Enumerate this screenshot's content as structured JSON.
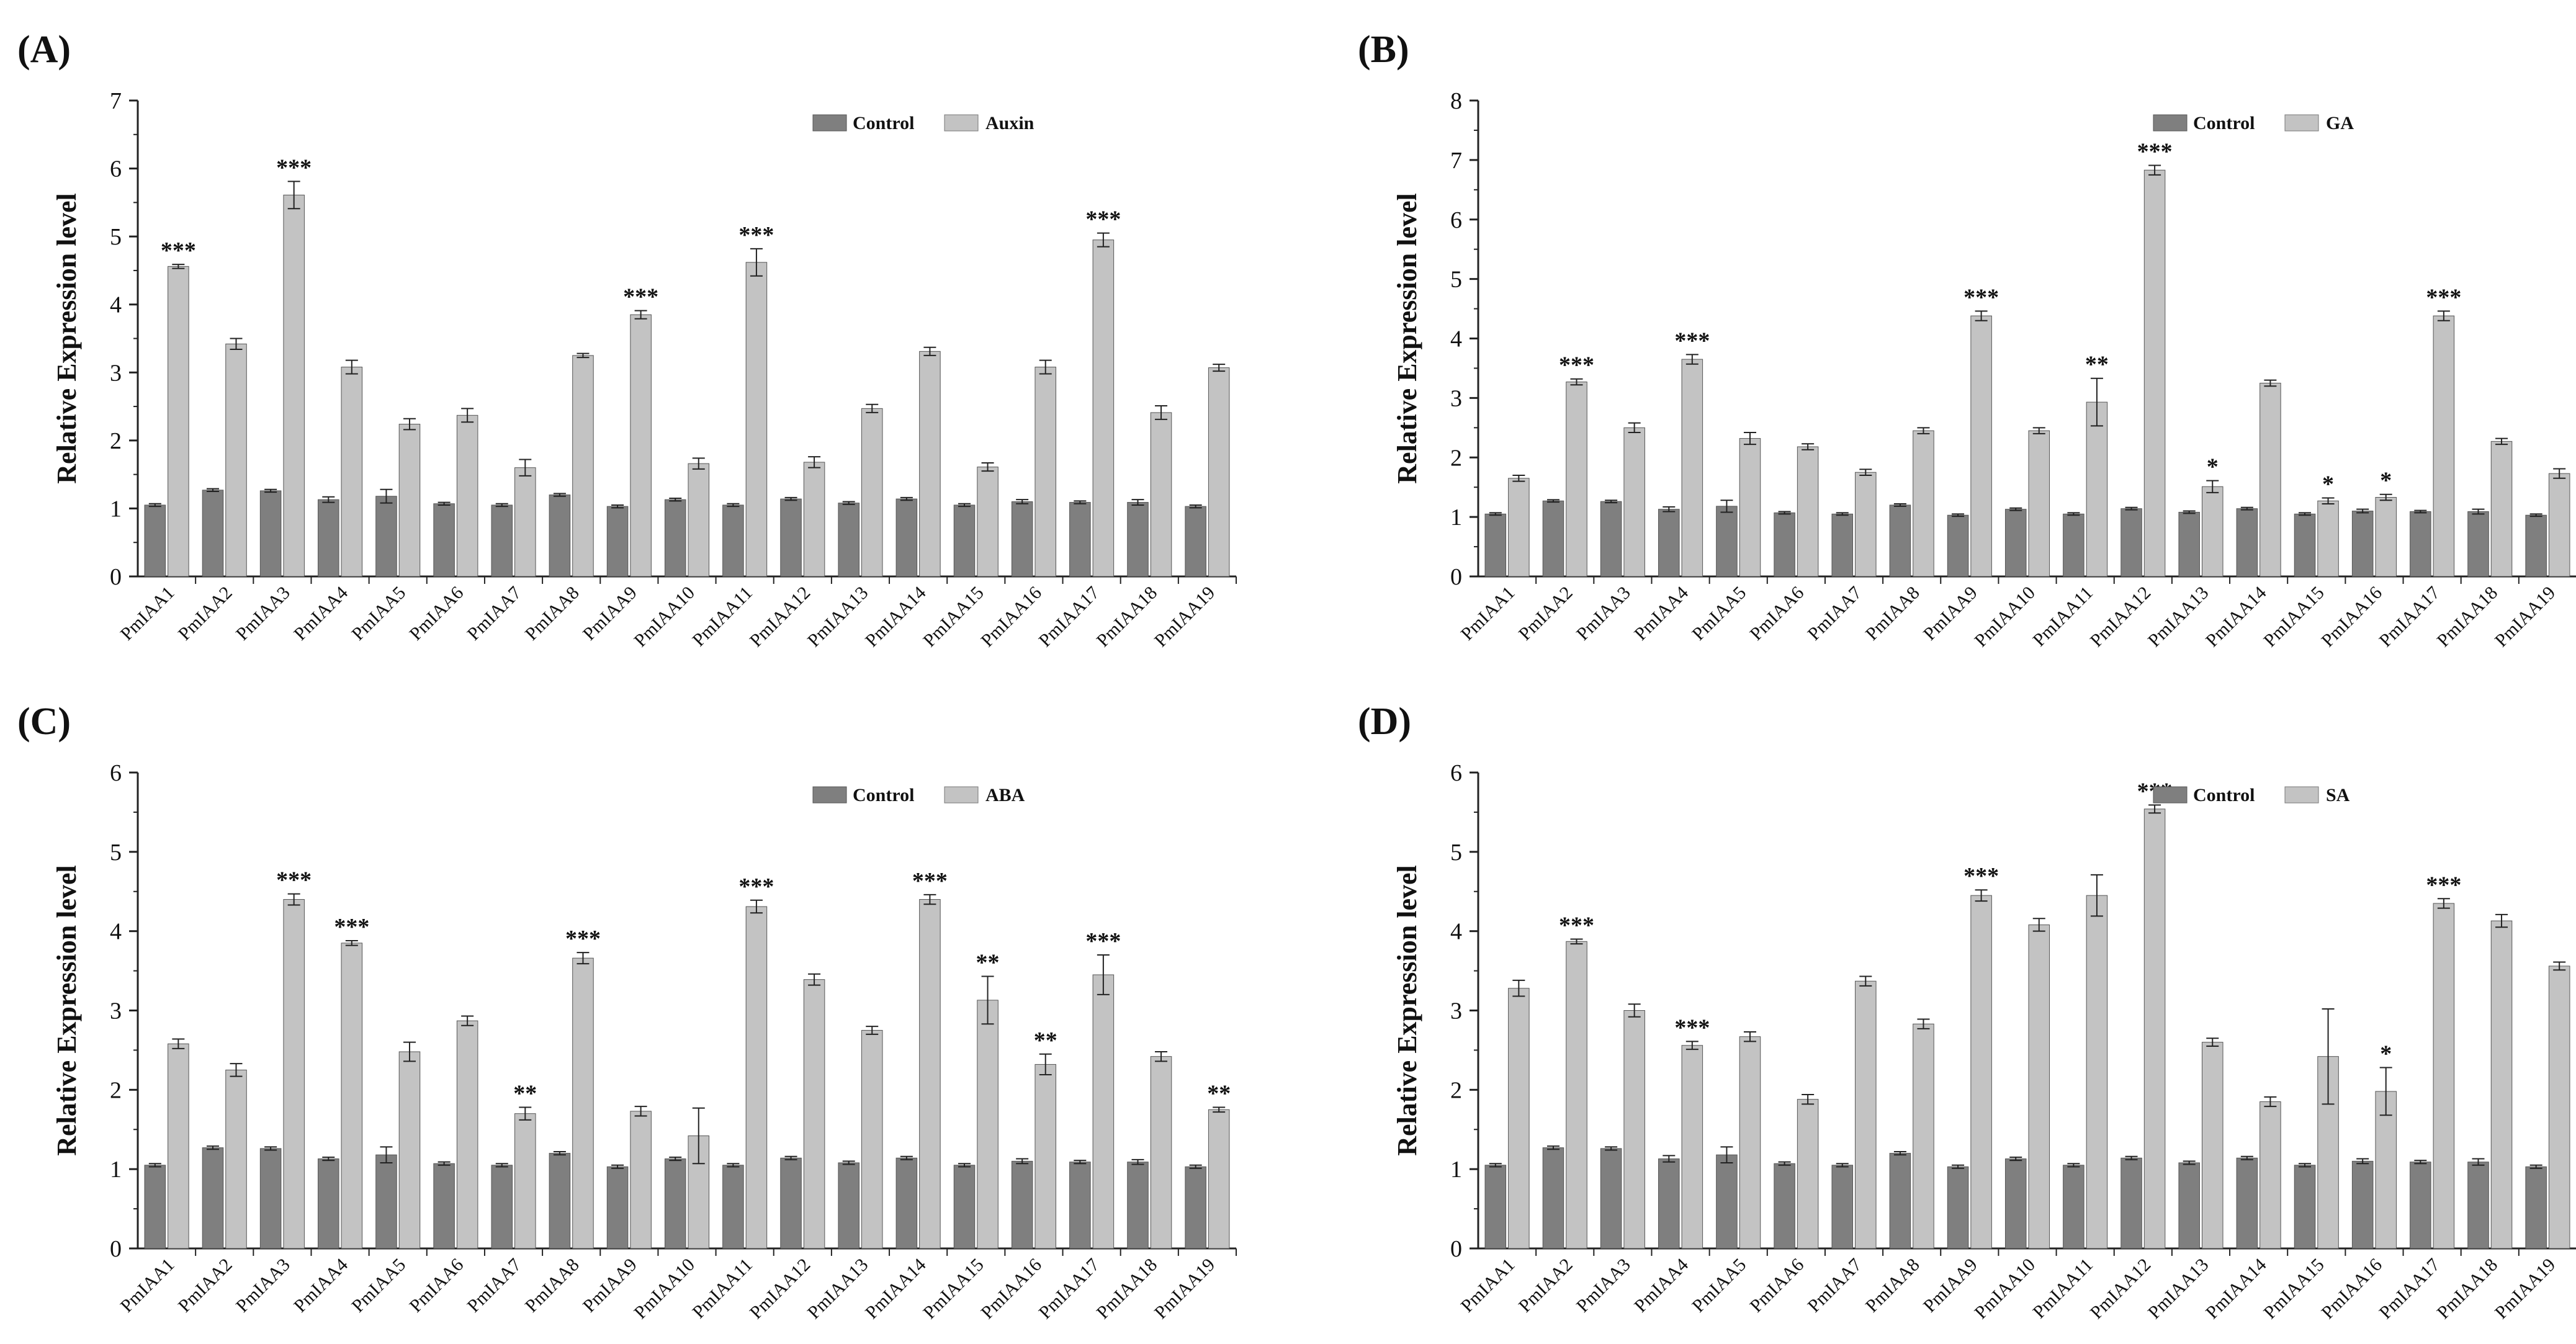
{
  "colors": {
    "control": "#7f7f7f",
    "treat": "#c3c3c3",
    "axis": "#222222"
  },
  "chart_data": [
    {
      "type": "bar",
      "panel_label": "(A)",
      "ylabel": "Relative Expression level",
      "ylim": [
        0,
        7
      ],
      "yticks": [
        "0",
        "1",
        "2",
        "3",
        "4",
        "5",
        "6",
        "7"
      ],
      "legend": [
        "Control",
        "Auxin"
      ],
      "categories": [
        "PmIAA1",
        "PmIAA2",
        "PmIAA3",
        "PmIAA4",
        "PmIAA5",
        "PmIAA6",
        "PmIAA7",
        "PmIAA8",
        "PmIAA9",
        "PmIAA10",
        "PmIAA11",
        "PmIAA12",
        "PmIAA13",
        "PmIAA14",
        "PmIAA15",
        "PmIAA16",
        "PmIAA17",
        "PmIAA18",
        "PmIAA19"
      ],
      "series": [
        {
          "name": "Control",
          "values": [
            1.05,
            1.27,
            1.26,
            1.13,
            1.18,
            1.07,
            1.05,
            1.2,
            1.03,
            1.13,
            1.05,
            1.14,
            1.08,
            1.14,
            1.05,
            1.1,
            1.09,
            1.09,
            1.03
          ],
          "errors": [
            0.02,
            0.02,
            0.02,
            0.04,
            0.1,
            0.02,
            0.02,
            0.02,
            0.02,
            0.02,
            0.02,
            0.02,
            0.02,
            0.02,
            0.02,
            0.03,
            0.02,
            0.04,
            0.02
          ]
        },
        {
          "name": "Auxin",
          "values": [
            4.56,
            3.42,
            5.61,
            3.08,
            2.24,
            2.37,
            1.6,
            3.25,
            3.85,
            1.66,
            4.62,
            1.68,
            2.47,
            3.31,
            1.61,
            3.08,
            4.95,
            2.41,
            3.07
          ],
          "errors": [
            0.03,
            0.08,
            0.2,
            0.1,
            0.08,
            0.1,
            0.12,
            0.03,
            0.06,
            0.08,
            0.2,
            0.08,
            0.06,
            0.06,
            0.06,
            0.1,
            0.1,
            0.1,
            0.05
          ]
        }
      ],
      "annotations": [
        "***",
        "",
        "***",
        "",
        "",
        "",
        "",
        "",
        "***",
        "",
        "***",
        "",
        "",
        "",
        "",
        "",
        "***",
        "",
        ""
      ]
    },
    {
      "type": "bar",
      "panel_label": "(B)",
      "ylabel": "Relative Expression level",
      "ylim": [
        0,
        8
      ],
      "yticks": [
        "0",
        "1",
        "2",
        "3",
        "4",
        "5",
        "6",
        "7",
        "8"
      ],
      "legend": [
        "Control",
        "GA"
      ],
      "categories": [
        "PmIAA1",
        "PmIAA2",
        "PmIAA3",
        "PmIAA4",
        "PmIAA5",
        "PmIAA6",
        "PmIAA7",
        "PmIAA8",
        "PmIAA9",
        "PmIAA10",
        "PmIAA11",
        "PmIAA12",
        "PmIAA13",
        "PmIAA14",
        "PmIAA15",
        "PmIAA16",
        "PmIAA17",
        "PmIAA18",
        "PmIAA19"
      ],
      "series": [
        {
          "name": "Control",
          "values": [
            1.05,
            1.27,
            1.26,
            1.13,
            1.18,
            1.07,
            1.05,
            1.2,
            1.03,
            1.13,
            1.05,
            1.14,
            1.08,
            1.14,
            1.05,
            1.1,
            1.09,
            1.09,
            1.03
          ],
          "errors": [
            0.02,
            0.02,
            0.02,
            0.04,
            0.1,
            0.02,
            0.02,
            0.02,
            0.02,
            0.02,
            0.02,
            0.02,
            0.02,
            0.02,
            0.02,
            0.03,
            0.02,
            0.04,
            0.02
          ]
        },
        {
          "name": "GA",
          "values": [
            1.65,
            3.27,
            2.5,
            3.65,
            2.32,
            2.18,
            1.75,
            2.45,
            4.38,
            2.45,
            2.93,
            6.83,
            1.51,
            3.25,
            1.27,
            1.33,
            4.38,
            2.27,
            1.73
          ],
          "errors": [
            0.05,
            0.05,
            0.08,
            0.08,
            0.1,
            0.05,
            0.05,
            0.05,
            0.08,
            0.05,
            0.4,
            0.08,
            0.1,
            0.05,
            0.05,
            0.05,
            0.08,
            0.05,
            0.08
          ]
        }
      ],
      "annotations": [
        "",
        "***",
        "",
        "***",
        "",
        "",
        "",
        "",
        "***",
        "",
        "**",
        "***",
        "*",
        "",
        "*",
        "*",
        "***",
        "",
        ""
      ]
    },
    {
      "type": "bar",
      "panel_label": "(C)",
      "ylabel": "Relative Expression level",
      "ylim": [
        0,
        6
      ],
      "yticks": [
        "0",
        "1",
        "2",
        "3",
        "4",
        "5",
        "6"
      ],
      "legend": [
        "Control",
        "ABA"
      ],
      "categories": [
        "PmIAA1",
        "PmIAA2",
        "PmIAA3",
        "PmIAA4",
        "PmIAA5",
        "PmIAA6",
        "PmIAA7",
        "PmIAA8",
        "PmIAA9",
        "PmIAA10",
        "PmIAA11",
        "PmIAA12",
        "PmIAA13",
        "PmIAA14",
        "PmIAA15",
        "PmIAA16",
        "PmIAA17",
        "PmIAA18",
        "PmIAA19"
      ],
      "series": [
        {
          "name": "Control",
          "values": [
            1.05,
            1.27,
            1.26,
            1.13,
            1.18,
            1.07,
            1.05,
            1.2,
            1.03,
            1.13,
            1.05,
            1.14,
            1.08,
            1.14,
            1.05,
            1.1,
            1.09,
            1.09,
            1.03
          ],
          "errors": [
            0.02,
            0.02,
            0.02,
            0.02,
            0.1,
            0.02,
            0.02,
            0.02,
            0.02,
            0.02,
            0.02,
            0.02,
            0.02,
            0.02,
            0.02,
            0.03,
            0.02,
            0.03,
            0.02
          ]
        },
        {
          "name": "ABA",
          "values": [
            2.58,
            2.25,
            4.4,
            3.85,
            2.48,
            2.87,
            1.7,
            3.66,
            1.73,
            1.42,
            4.31,
            3.39,
            2.75,
            4.4,
            3.13,
            2.32,
            3.45,
            2.42,
            1.75
          ],
          "errors": [
            0.06,
            0.08,
            0.07,
            0.03,
            0.12,
            0.06,
            0.08,
            0.07,
            0.06,
            0.35,
            0.08,
            0.07,
            0.05,
            0.06,
            0.3,
            0.13,
            0.25,
            0.06,
            0.03
          ]
        }
      ],
      "annotations": [
        "",
        "",
        "***",
        "***",
        "",
        "",
        "**",
        "***",
        "",
        "",
        "***",
        "",
        "",
        "***",
        "**",
        "**",
        "***",
        "",
        "**"
      ]
    },
    {
      "type": "bar",
      "panel_label": "(D)",
      "ylabel": "Relative Expression level",
      "ylim": [
        0,
        6
      ],
      "yticks": [
        "0",
        "1",
        "2",
        "3",
        "4",
        "5",
        "6"
      ],
      "legend": [
        "Control",
        "SA"
      ],
      "categories": [
        "PmIAA1",
        "PmIAA2",
        "PmIAA3",
        "PmIAA4",
        "PmIAA5",
        "PmIAA6",
        "PmIAA7",
        "PmIAA8",
        "PmIAA9",
        "PmIAA10",
        "PmIAA11",
        "PmIAA12",
        "PmIAA13",
        "PmIAA14",
        "PmIAA15",
        "PmIAA16",
        "PmIAA17",
        "PmIAA18",
        "PmIAA19"
      ],
      "series": [
        {
          "name": "Control",
          "values": [
            1.05,
            1.27,
            1.26,
            1.13,
            1.18,
            1.07,
            1.05,
            1.2,
            1.03,
            1.13,
            1.05,
            1.14,
            1.08,
            1.14,
            1.05,
            1.1,
            1.09,
            1.09,
            1.03
          ],
          "errors": [
            0.02,
            0.02,
            0.02,
            0.04,
            0.1,
            0.02,
            0.02,
            0.02,
            0.02,
            0.02,
            0.02,
            0.02,
            0.02,
            0.02,
            0.02,
            0.03,
            0.02,
            0.04,
            0.02
          ]
        },
        {
          "name": "SA",
          "values": [
            3.28,
            3.87,
            3.0,
            2.56,
            2.67,
            1.88,
            3.37,
            2.83,
            4.45,
            4.08,
            4.45,
            5.54,
            2.6,
            1.85,
            2.42,
            1.98,
            4.35,
            4.13,
            3.56
          ],
          "errors": [
            0.1,
            0.03,
            0.08,
            0.05,
            0.06,
            0.06,
            0.06,
            0.06,
            0.07,
            0.08,
            0.26,
            0.05,
            0.05,
            0.06,
            0.6,
            0.3,
            0.06,
            0.08,
            0.05
          ]
        }
      ],
      "annotations": [
        "",
        "***",
        "",
        "***",
        "",
        "",
        "",
        "",
        "***",
        "",
        "",
        "***",
        "",
        "",
        "",
        "*",
        "***",
        "",
        ""
      ]
    }
  ]
}
